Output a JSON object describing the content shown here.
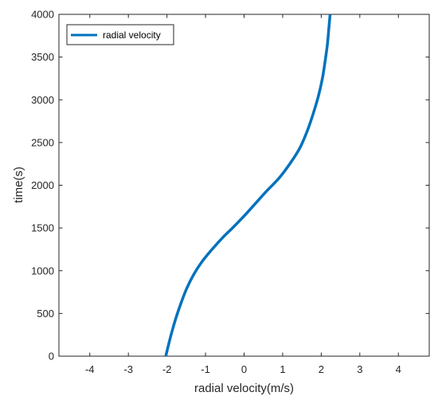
{
  "chart_data": {
    "type": "line",
    "title": "",
    "xlabel": "radial velocity(m/s)",
    "ylabel": "time(s)",
    "xlim": [
      -4.8,
      4.8
    ],
    "ylim": [
      0,
      4000
    ],
    "xticks": [
      -4,
      -3,
      -2,
      -1,
      0,
      1,
      2,
      3,
      4
    ],
    "xtick_labels": [
      "-4",
      "-3",
      "-2",
      "-1",
      "0",
      "1",
      "2",
      "3",
      "4"
    ],
    "yticks": [
      0,
      500,
      1000,
      1500,
      2000,
      2500,
      3000,
      3500,
      4000
    ],
    "ytick_labels": [
      "0",
      "500",
      "1000",
      "1500",
      "2000",
      "2500",
      "3000",
      "3500",
      "4000"
    ],
    "grid": false,
    "legend_position": "top-left",
    "series": [
      {
        "name": "radial velocity",
        "color": "#0072bd",
        "x": [
          -2.03,
          -1.95,
          -1.85,
          -1.75,
          -1.62,
          -1.48,
          -1.3,
          -1.1,
          -0.85,
          -0.55,
          -0.3,
          0.0,
          0.3,
          0.6,
          0.9,
          1.2,
          1.45,
          1.65,
          1.8,
          1.93,
          2.03,
          2.1,
          2.16,
          2.2,
          2.23
        ],
        "y": [
          0,
          150,
          320,
          470,
          640,
          800,
          960,
          1100,
          1240,
          1390,
          1500,
          1640,
          1790,
          1940,
          2080,
          2260,
          2440,
          2650,
          2850,
          3050,
          3250,
          3450,
          3650,
          3850,
          4000
        ]
      }
    ]
  }
}
